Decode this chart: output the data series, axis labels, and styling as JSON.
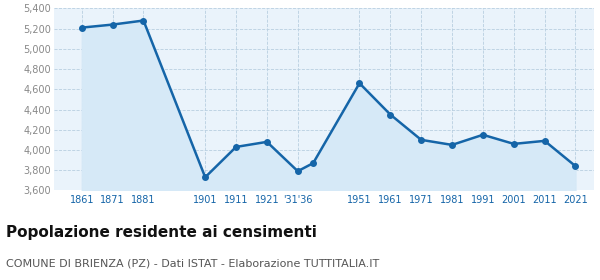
{
  "years": [
    1861,
    1871,
    1881,
    1901,
    1911,
    1921,
    1931,
    1936,
    1951,
    1961,
    1971,
    1981,
    1991,
    2001,
    2011,
    2021
  ],
  "population": [
    5210,
    5240,
    5280,
    3730,
    4030,
    4080,
    3790,
    3870,
    4660,
    4350,
    4100,
    4050,
    4150,
    4060,
    4090,
    3840
  ],
  "line_color": "#1565a8",
  "fill_color": "#d6e9f7",
  "marker_color": "#1565a8",
  "bg_color": "#eaf3fb",
  "grid_color": "#b8cfe0",
  "ylim": [
    3600,
    5400
  ],
  "yticks": [
    3600,
    3800,
    4000,
    4200,
    4400,
    4600,
    4800,
    5000,
    5200,
    5400
  ],
  "xtick_positions": [
    1861,
    1871,
    1881,
    1901,
    1911,
    1921,
    1931,
    1951,
    1961,
    1971,
    1981,
    1991,
    2001,
    2011,
    2021
  ],
  "xtick_labels": [
    "1861",
    "1871",
    "1881",
    "1901",
    "1911",
    "1921",
    "'31'36",
    "1951",
    "1961",
    "1971",
    "1981",
    "1991",
    "2001",
    "2011",
    "2021"
  ],
  "xlim": [
    1852,
    2027
  ],
  "title": "Popolazione residente ai censimenti",
  "subtitle": "COMUNE DI BRIENZA (PZ) - Dati ISTAT - Elaborazione TUTTITALIA.IT",
  "title_fontsize": 11,
  "subtitle_fontsize": 8,
  "tick_fontsize": 7,
  "ytick_color": "#888888",
  "xtick_color": "#1565a8",
  "marker_size": 16
}
